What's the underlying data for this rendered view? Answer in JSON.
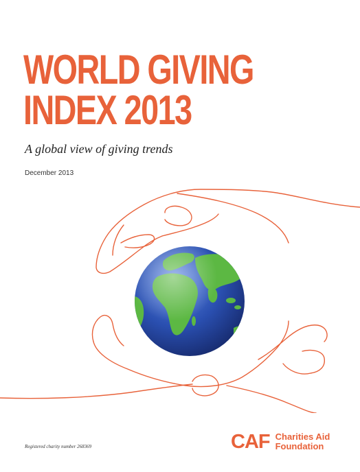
{
  "cover": {
    "title_line1": "WORLD GIVING",
    "title_line2": "INDEX 2013",
    "subtitle": "A global view of giving trends",
    "date": "December 2013",
    "charity_number": "Registered charity number 268369"
  },
  "logo": {
    "mark": "CAF",
    "name_line1": "Charities Aid",
    "name_line2": "Foundation"
  },
  "colors": {
    "accent": "#e8623a",
    "ocean": "#2a4fb0",
    "land": "#5cb843"
  },
  "illustration": {
    "icons": [
      "hands-outline-icon",
      "globe-icon"
    ]
  }
}
